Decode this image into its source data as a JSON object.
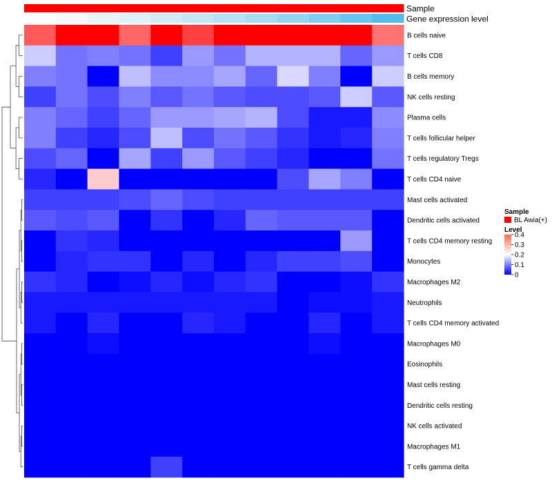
{
  "chart_data": {
    "type": "heatmap",
    "title": "",
    "annotation_tracks": [
      {
        "name": "Sample",
        "colors": [
          "#ff0000",
          "#ff0000",
          "#ff0000",
          "#ff0000",
          "#ff0000",
          "#ff0000",
          "#ff0000",
          "#ff0000",
          "#ff0000",
          "#ff0000",
          "#ff0000",
          "#ff0000"
        ]
      },
      {
        "name": "Gene expression level",
        "colors": [
          "#ffffff",
          "#f4f9fc",
          "#e8f4fa",
          "#dcf0f8",
          "#d0ebf6",
          "#c3e6f4",
          "#b4e1f3",
          "#a4dbf2",
          "#93d5f1",
          "#7fcdf0",
          "#68c5ef",
          "#4fbdee"
        ]
      }
    ],
    "rows": [
      "B cells naive",
      "T cells CD8",
      "B cells memory",
      "NK cells resting",
      "Plasma cells",
      "T cells follicular helper",
      "T cells regulatory  Tregs",
      "T cells CD4 naive",
      "Mast cells activated",
      "Dendritic cells activated",
      "T cells CD4 memory resting",
      "Monocytes",
      "Macrophages M2",
      "Neutrophils",
      "T cells CD4 memory activated",
      "Macrophages M0",
      "Eosinophils",
      "Mast cells resting",
      "Dendritic cells resting",
      "NK cells activated",
      "Macrophages M1",
      "T cells gamma delta"
    ],
    "values": [
      [
        0.33,
        0.45,
        0.43,
        0.32,
        0.4,
        0.35,
        0.4,
        0.44,
        0.4,
        0.45,
        0.45,
        0.31
      ],
      [
        0.16,
        0.09,
        0.1,
        0.09,
        0.05,
        0.12,
        0.09,
        0.14,
        0.14,
        0.14,
        0.08,
        0.12
      ],
      [
        0.1,
        0.09,
        0.0,
        0.15,
        0.11,
        0.11,
        0.13,
        0.08,
        0.17,
        0.1,
        0.0,
        0.16
      ],
      [
        0.05,
        0.09,
        0.06,
        0.1,
        0.07,
        0.09,
        0.07,
        0.06,
        0.06,
        0.07,
        0.16,
        0.07
      ],
      [
        0.1,
        0.08,
        0.05,
        0.08,
        0.12,
        0.12,
        0.13,
        0.14,
        0.06,
        0.02,
        0.02,
        0.11
      ],
      [
        0.1,
        0.05,
        0.03,
        0.06,
        0.15,
        0.06,
        0.09,
        0.07,
        0.04,
        0.02,
        0.03,
        0.1
      ],
      [
        0.06,
        0.08,
        0.0,
        0.13,
        0.05,
        0.12,
        0.07,
        0.05,
        0.03,
        0.0,
        0.0,
        0.09
      ],
      [
        0.03,
        0.0,
        0.24,
        0.0,
        0.0,
        0.0,
        0.0,
        0.0,
        0.06,
        0.13,
        0.1,
        0.0
      ],
      [
        0.05,
        0.05,
        0.05,
        0.06,
        0.08,
        0.06,
        0.05,
        0.05,
        0.05,
        0.05,
        0.05,
        0.05
      ],
      [
        0.07,
        0.06,
        0.07,
        0.0,
        0.04,
        0.0,
        0.03,
        0.08,
        0.07,
        0.07,
        0.07,
        0.0
      ],
      [
        0.0,
        0.04,
        0.03,
        0.0,
        0.0,
        0.0,
        0.0,
        0.0,
        0.0,
        0.0,
        0.12,
        0.0
      ],
      [
        0.0,
        0.03,
        0.04,
        0.04,
        0.0,
        0.03,
        0.0,
        0.03,
        0.05,
        0.05,
        0.06,
        0.0
      ],
      [
        0.04,
        0.03,
        0.0,
        0.01,
        0.03,
        0.01,
        0.03,
        0.04,
        0.0,
        0.0,
        0.01,
        0.04
      ],
      [
        0.02,
        0.02,
        0.02,
        0.02,
        0.02,
        0.02,
        0.02,
        0.02,
        0.0,
        0.01,
        0.01,
        0.02
      ],
      [
        0.02,
        0.0,
        0.03,
        0.0,
        0.0,
        0.03,
        0.02,
        0.0,
        0.0,
        0.03,
        0.0,
        0.02
      ],
      [
        0.0,
        0.0,
        0.01,
        0.0,
        0.0,
        0.0,
        0.0,
        0.0,
        0.0,
        0.01,
        0.0,
        0.0
      ],
      [
        0.0,
        0.0,
        0.0,
        0.0,
        0.0,
        0.0,
        0.0,
        0.0,
        0.0,
        0.0,
        0.0,
        0.0
      ],
      [
        0.0,
        0.0,
        0.0,
        0.0,
        0.0,
        0.0,
        0.0,
        0.0,
        0.0,
        0.0,
        0.0,
        0.0
      ],
      [
        0.0,
        0.0,
        0.0,
        0.0,
        0.0,
        0.0,
        0.0,
        0.0,
        0.0,
        0.0,
        0.0,
        0.0
      ],
      [
        0.0,
        0.0,
        0.0,
        0.0,
        0.0,
        0.0,
        0.0,
        0.0,
        0.0,
        0.0,
        0.0,
        0.0
      ],
      [
        0.0,
        0.0,
        0.0,
        0.0,
        0.0,
        0.0,
        0.0,
        0.0,
        0.0,
        0.0,
        0.0,
        0.0
      ],
      [
        0.0,
        0.0,
        0.0,
        0.0,
        0.05,
        0.0,
        0.0,
        0.0,
        0.0,
        0.0,
        0.0,
        0.0
      ]
    ],
    "color_scale": {
      "min": 0,
      "max": 0.4,
      "low": "#0000ff",
      "mid": "#ffffff",
      "high": "#ff0000",
      "midpoint": 0.2
    },
    "legend": {
      "position": "right",
      "sample_title": "Sample",
      "sample_entry": "BL Awia(+)",
      "sample_color": "#ff0000",
      "level_title": "Level",
      "ticks": [
        "0.4",
        "0.3",
        "0.2",
        "0.1",
        "0"
      ]
    }
  }
}
